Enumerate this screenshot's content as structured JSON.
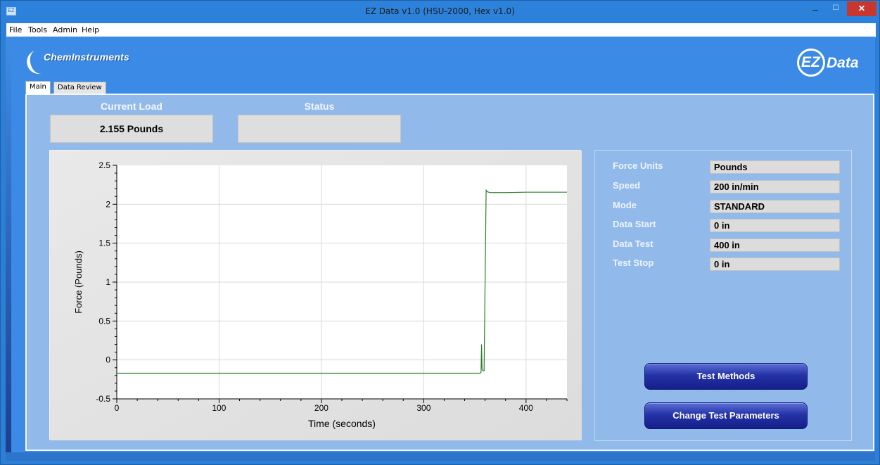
{
  "window": {
    "title": "EZ Data v1.0 (HSU-2000, Hex v1.0)",
    "icon": "app-icon",
    "icon_text": "EZ"
  },
  "menu": {
    "items": [
      "File",
      "Tools",
      "Admin",
      "Help"
    ]
  },
  "branding": {
    "left_logo_text": "ChemInstruments",
    "right_logo_ez": "EZ",
    "right_logo_data": "Data"
  },
  "tabs": [
    {
      "label": "Main",
      "active": true
    },
    {
      "label": "Data Review",
      "active": false
    }
  ],
  "readouts": {
    "current_load_label": "Current Load",
    "current_load_value": "2.155 Pounds",
    "status_label": "Status",
    "status_value": ""
  },
  "parameters": [
    {
      "label": "Force Units",
      "value": "Pounds"
    },
    {
      "label": "Speed",
      "value": "200 in/min"
    },
    {
      "label": "Mode",
      "value": "STANDARD"
    },
    {
      "label": "Data Start",
      "value": "0 in"
    },
    {
      "label": "Data Test",
      "value": "400 in"
    },
    {
      "label": "Test Stop",
      "value": "0 in"
    }
  ],
  "buttons": {
    "test_methods": "Test Methods",
    "change_test_parameters": "Change Test Parameters"
  },
  "colors": {
    "accent_blue": "#3a8ae6",
    "panel_blue": "#91b9ea",
    "series_green": "#2e7d2e",
    "close_red": "#c7372f"
  },
  "chart_data": {
    "type": "line",
    "title": "",
    "xlabel": "Time (seconds)",
    "ylabel": "Force (Pounds)",
    "xlim": [
      0,
      440
    ],
    "ylim": [
      -0.5,
      2.5
    ],
    "x_ticks": [
      0,
      100,
      200,
      300,
      400
    ],
    "y_ticks": [
      -0.5,
      0,
      0.5,
      1,
      1.5,
      2,
      2.5
    ],
    "x_tick_labels": [
      "0",
      "100",
      "200",
      "300",
      "400"
    ],
    "y_tick_labels": [
      "-0.5",
      "0",
      "0.5",
      "1",
      "1.5",
      "2",
      "2.5"
    ],
    "grid": true,
    "series": [
      {
        "color": "#2e7d2e",
        "x": [
          0,
          100,
          200,
          300,
          355,
          356,
          356.5,
          357,
          358,
          359,
          361,
          362,
          365,
          370,
          380,
          400,
          440
        ],
        "y": [
          -0.17,
          -0.17,
          -0.17,
          -0.17,
          -0.17,
          -0.16,
          0.2,
          -0.12,
          -0.14,
          -0.14,
          2.18,
          2.16,
          2.15,
          2.15,
          2.15,
          2.155,
          2.155
        ]
      }
    ]
  }
}
